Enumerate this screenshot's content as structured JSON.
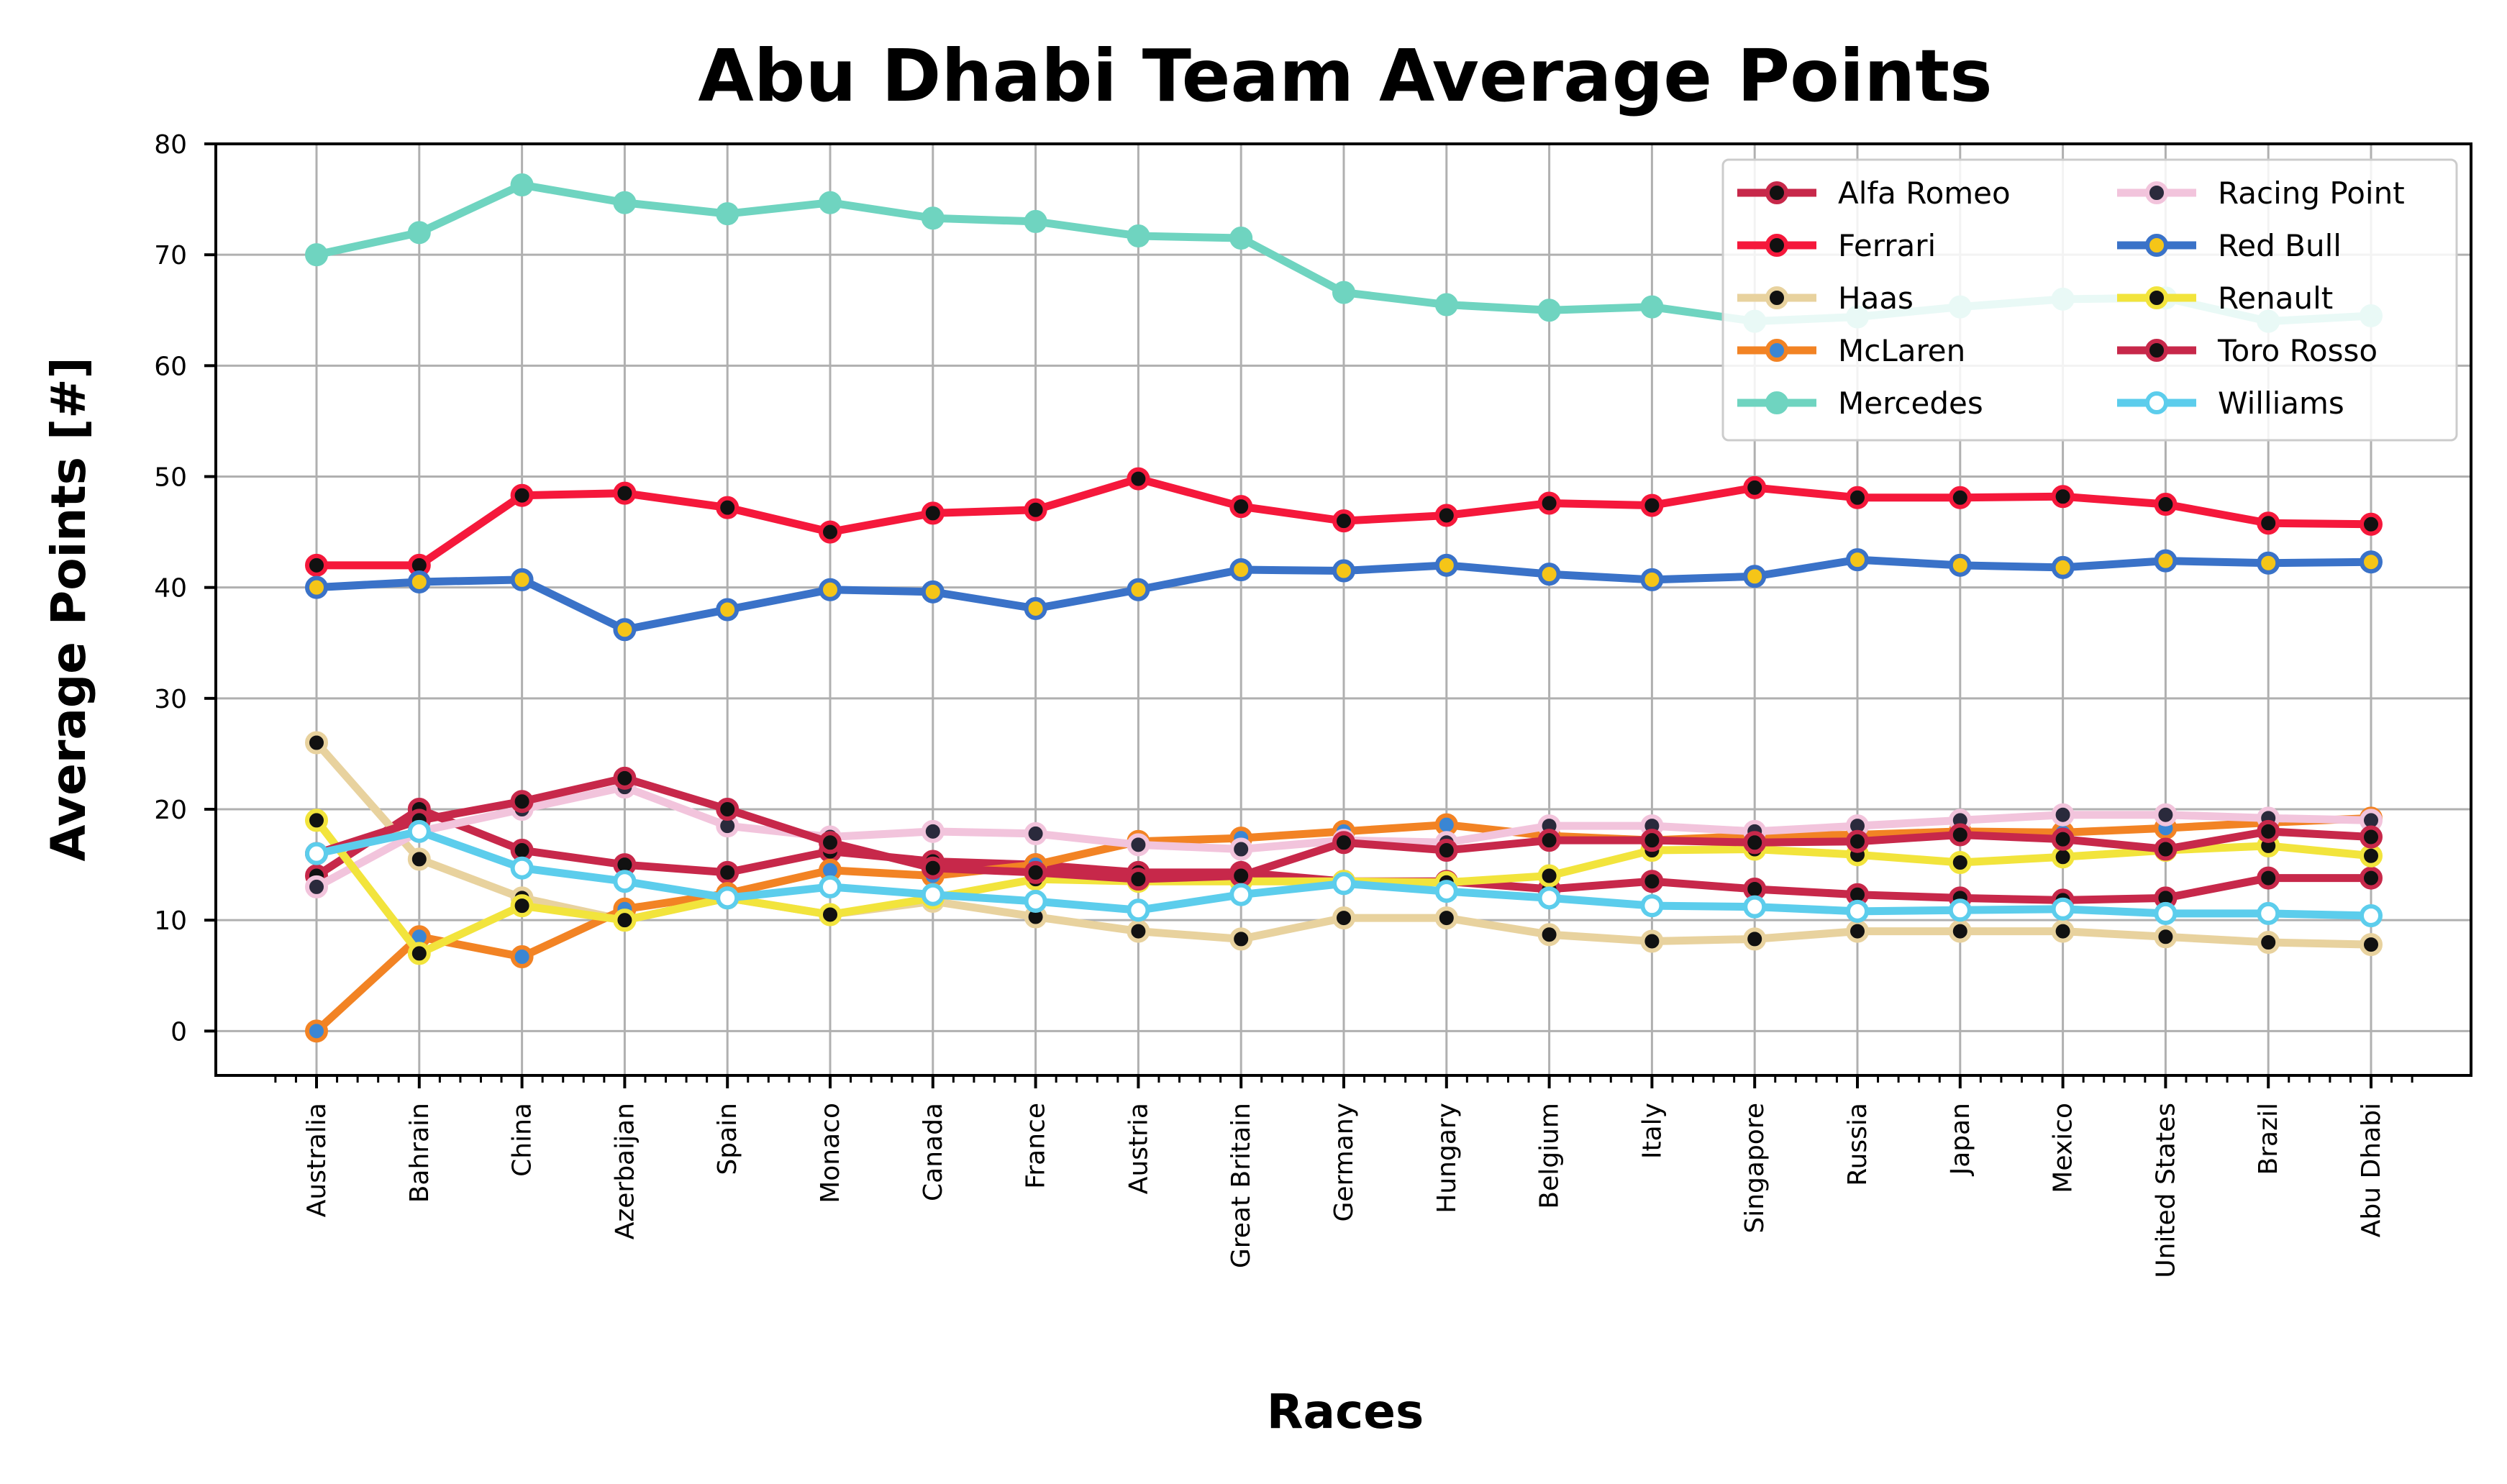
{
  "chart_data": {
    "type": "line",
    "title": "Abu Dhabi Team Average Points",
    "xlabel": "Races",
    "ylabel": "Average Points [#]",
    "ylim": [
      -4,
      80
    ],
    "yticks": [
      0,
      10,
      20,
      30,
      40,
      50,
      60,
      70,
      80
    ],
    "grid": true,
    "legend_position": "top-right",
    "categories": [
      "Australia",
      "Bahrain",
      "China",
      "Azerbaijan",
      "Spain",
      "Monaco",
      "Canada",
      "France",
      "Austria",
      "Great Britain",
      "Germany",
      "Hungary",
      "Belgium",
      "Italy",
      "Singapore",
      "Russia",
      "Japan",
      "Mexico",
      "United States",
      "Brazil",
      "Abu Dhabi"
    ],
    "series": [
      {
        "name": "Alfa Romeo",
        "color": "#c7284a",
        "marker_fill": "#111111",
        "values": [
          14,
          20,
          16.3,
          15,
          14.3,
          16.2,
          15.3,
          15,
          14.3,
          14.3,
          13.5,
          13.5,
          12.8,
          13.5,
          12.8,
          12.3,
          12,
          11.8,
          12,
          13.8,
          13.8
        ]
      },
      {
        "name": "Ferrari",
        "color": "#f5183b",
        "marker_fill": "#111111",
        "values": [
          42,
          42,
          48.3,
          48.5,
          47.2,
          45,
          46.7,
          47,
          49.8,
          47.3,
          46,
          46.5,
          47.6,
          47.4,
          49,
          48.1,
          48.1,
          48.2,
          47.5,
          45.8,
          45.7
        ]
      },
      {
        "name": "Haas",
        "color": "#e8d29e",
        "marker_fill": "#111111",
        "values": [
          26,
          15.5,
          12,
          10,
          12,
          10.5,
          11.7,
          10.3,
          9,
          8.3,
          10.2,
          10.2,
          8.7,
          8.1,
          8.3,
          9,
          9,
          9,
          8.5,
          8,
          7.8
        ]
      },
      {
        "name": "McLaren",
        "color": "#f28324",
        "marker_fill": "#3a86d4",
        "values": [
          0,
          8.5,
          6.7,
          11,
          12.4,
          14.5,
          14,
          15,
          17.1,
          17.4,
          18,
          18.6,
          17.6,
          17.2,
          17.6,
          17.7,
          18,
          17.9,
          18.3,
          18.8,
          19.2
        ]
      },
      {
        "name": "Mercedes",
        "color": "#6fd4c0",
        "marker_fill": "#6fd4c0",
        "values": [
          70,
          72,
          76.3,
          74.7,
          73.7,
          74.7,
          73.3,
          73,
          71.7,
          71.5,
          66.6,
          65.5,
          65,
          65.3,
          64,
          64.4,
          65.3,
          66,
          66.1,
          64,
          64.5
        ]
      },
      {
        "name": "Racing Point",
        "color": "#f2c4dc",
        "marker_fill": "#2a2a3c",
        "values": [
          13,
          18,
          20,
          22,
          18.5,
          17.5,
          18,
          17.8,
          16.8,
          16.4,
          17.2,
          17,
          18.5,
          18.5,
          18,
          18.5,
          19,
          19.5,
          19.5,
          19.2,
          19
        ]
      },
      {
        "name": "Red Bull",
        "color": "#3a72c8",
        "marker_fill": "#f5c518",
        "values": [
          40,
          40.5,
          40.7,
          36.2,
          38,
          39.8,
          39.6,
          38.1,
          39.8,
          41.6,
          41.5,
          42,
          41.2,
          40.7,
          41,
          42.5,
          42,
          41.8,
          42.4,
          42.2,
          42.3
        ]
      },
      {
        "name": "Renault",
        "color": "#f2e43c",
        "marker_fill": "#111111",
        "values": [
          19,
          7,
          11.3,
          10,
          12,
          10.5,
          12,
          13.7,
          13.5,
          13.5,
          13.5,
          13.4,
          14,
          16.3,
          16.4,
          15.9,
          15.2,
          15.7,
          16.3,
          16.7,
          15.8
        ]
      },
      {
        "name": "Toro Rosso",
        "color": "#c7284a",
        "marker_fill": "#111111",
        "values": [
          16,
          19,
          20.7,
          22.8,
          20,
          17,
          14.7,
          14.3,
          13.7,
          14,
          17,
          16.3,
          17.2,
          17.2,
          17,
          17.1,
          17.7,
          17.3,
          16.4,
          18,
          17.5
        ]
      },
      {
        "name": "Williams",
        "color": "#5ccdec",
        "marker_fill": "#ffffff",
        "values": [
          16,
          18,
          14.7,
          13.5,
          12,
          13,
          12.3,
          11.7,
          10.9,
          12.3,
          13.3,
          12.6,
          12,
          11.3,
          11.2,
          10.8,
          10.9,
          11,
          10.6,
          10.6,
          10.4
        ]
      }
    ]
  }
}
